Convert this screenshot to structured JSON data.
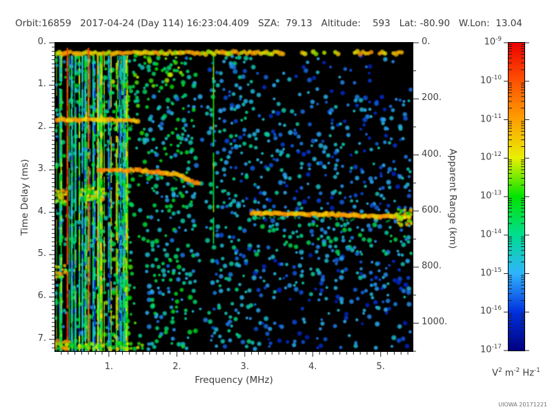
{
  "header": {
    "line": "Orbit:16859   2017-04-24 (Day 114) 16:23:04.409   SZA:  79.13   Altitude:    593   Lat: -80.90   W.Lon:  13.04",
    "fields": {
      "orbit": "16859",
      "date": "2017-04-24",
      "day_of_year": "114",
      "time": "16:23:04.409",
      "sza": "79.13",
      "altitude": "593",
      "lat": "-80.90",
      "w_lon": "13.04"
    }
  },
  "stamp": "UIOWA 20171221",
  "chart_data": {
    "type": "heatmap",
    "title": "",
    "xlabel": "Frequency (MHz)",
    "ylabel": "Time Delay (ms)",
    "y2label": "Apparent Range (km)",
    "axes": {
      "x": {
        "label": "Frequency (MHz)",
        "range": [
          0.21,
          5.47
        ],
        "minor_step": 0.1,
        "majors": [
          {
            "v": 1,
            "t": "1."
          },
          {
            "v": 2,
            "t": "2."
          },
          {
            "v": 3,
            "t": "3."
          },
          {
            "v": 4,
            "t": "4."
          },
          {
            "v": 5,
            "t": "5."
          }
        ]
      },
      "y": {
        "label": "Time Delay (ms)",
        "range": [
          0,
          7.28
        ],
        "minor_step": 0.1,
        "majors": [
          {
            "v": 0,
            "t": "0."
          },
          {
            "v": 1,
            "t": "1."
          },
          {
            "v": 2,
            "t": "2."
          },
          {
            "v": 3,
            "t": "3."
          },
          {
            "v": 4,
            "t": "4."
          },
          {
            "v": 5,
            "t": "5."
          },
          {
            "v": 6,
            "t": "6."
          },
          {
            "v": 7,
            "t": "7."
          }
        ]
      },
      "y2": {
        "label": "Apparent Range (km)",
        "range": [
          0,
          1100
        ],
        "minor_step": 100,
        "majors": [
          {
            "v": 0,
            "t": "0."
          },
          {
            "v": 200,
            "t": "200."
          },
          {
            "v": 400,
            "t": "400."
          },
          {
            "v": 600,
            "t": "600."
          },
          {
            "v": 800,
            "t": "800."
          },
          {
            "v": 1000,
            "t": "1000."
          }
        ]
      }
    },
    "colorbar": {
      "scale": "log",
      "base_text": "10",
      "exponents": [
        "-9",
        "-10",
        "-11",
        "-12",
        "-13",
        "-14",
        "-15",
        "-16",
        "-17"
      ],
      "unit_parts": [
        [
          "V",
          "2"
        ],
        [
          "m",
          "-2"
        ],
        [
          "Hz",
          "-1"
        ]
      ]
    },
    "colormap_stops": [
      [
        0.0,
        "#000080"
      ],
      [
        0.125,
        "#0030dd"
      ],
      [
        0.25,
        "#2fb4ff"
      ],
      [
        0.375,
        "#00dd90"
      ],
      [
        0.5,
        "#00e400"
      ],
      [
        0.625,
        "#e8f000"
      ],
      [
        0.75,
        "#ffa000"
      ],
      [
        0.875,
        "#ff5200"
      ],
      [
        1.0,
        "#ee0000"
      ]
    ],
    "seed": 20171221,
    "noise_regions": [
      {
        "f": [
          3.15,
          5.47
        ],
        "d": [
          4.25,
          5.0
        ],
        "density": 0.5,
        "int": [
          0.18,
          0.45
        ]
      },
      {
        "f": [
          0.9,
          2.1
        ],
        "d": [
          0.3,
          1.05
        ],
        "density": 0.55,
        "int": [
          0.3,
          0.62
        ]
      },
      {
        "f": [
          0.92,
          1.33
        ],
        "d": [
          0.3,
          7.28
        ],
        "density": 0.5,
        "int": [
          0.28,
          0.58
        ]
      },
      {
        "f": [
          1.33,
          1.55
        ],
        "d": [
          0.3,
          1.6
        ],
        "density": 0.5,
        "int": [
          0.28,
          0.55
        ]
      },
      {
        "f": [
          1.33,
          1.55
        ],
        "d": [
          1.6,
          7.28
        ],
        "density": 0.12,
        "int": [
          0.3,
          0.55
        ]
      },
      {
        "f": [
          1.55,
          2.28
        ],
        "d": [
          0.3,
          7.28
        ],
        "density": 0.42,
        "int": [
          0.18,
          0.48
        ]
      },
      {
        "f": [
          2.28,
          2.47
        ],
        "d": [
          0.3,
          7.28
        ],
        "density": 0.08,
        "int": [
          0.15,
          0.35
        ]
      },
      {
        "f": [
          2.47,
          3.15
        ],
        "d": [
          0.3,
          7.28
        ],
        "density": 0.4,
        "int": [
          0.14,
          0.4
        ]
      },
      {
        "f": [
          3.15,
          4.6
        ],
        "d": [
          0.3,
          1.3
        ],
        "density": 0.18,
        "int": [
          0.1,
          0.3
        ]
      },
      {
        "f": [
          4.6,
          5.47
        ],
        "d": [
          0.3,
          1.3
        ],
        "density": 0.14,
        "int": [
          0.08,
          0.28
        ]
      },
      {
        "f": [
          3.15,
          5.47
        ],
        "d": [
          6.1,
          7.28
        ],
        "density": 0.22,
        "int": [
          0.08,
          0.3
        ]
      },
      {
        "f": [
          3.15,
          5.47
        ],
        "d": [
          1.3,
          6.1
        ],
        "density": 0.34,
        "int": [
          0.1,
          0.35
        ]
      },
      {
        "f": [
          0.21,
          0.92
        ],
        "d": [
          0.3,
          7.28
        ],
        "density": 0.3,
        "int": [
          0.2,
          0.5
        ]
      }
    ],
    "stripes": {
      "f_range": [
        0.21,
        1.33
      ],
      "count": 46,
      "int": [
        0.2,
        0.62
      ]
    },
    "features": [
      {
        "name": "transmit-pulse-band",
        "kind": "hband",
        "f": [
          0.21,
          5.47
        ],
        "delay": 0.24,
        "height": 0.17,
        "intensity": 0.68,
        "fragment_after_mhz": 3.5
      },
      {
        "name": "low-freq-bright-line-1",
        "kind": "vline",
        "freq": 0.39,
        "d": [
          0.12,
          7.28
        ],
        "intensity": 0.9,
        "width": 2.5
      },
      {
        "name": "low-freq-bright-line-2",
        "kind": "vline",
        "freq": 0.7,
        "d": [
          0.12,
          7.28
        ],
        "intensity": 0.82,
        "width": 2.5
      },
      {
        "name": "green-stripe",
        "kind": "vline",
        "freq": 0.84,
        "d": [
          0.3,
          7.28
        ],
        "intensity": 0.68,
        "width": 2
      },
      {
        "name": "faint-green-vline",
        "kind": "vline",
        "freq": 2.54,
        "d": [
          0.3,
          4.7
        ],
        "intensity": 0.5,
        "width": 2
      },
      {
        "name": "plasma-harmonic-line",
        "kind": "trace",
        "points": [
          [
            0.21,
            1.82
          ],
          [
            1.0,
            1.82
          ],
          [
            1.45,
            1.84
          ]
        ],
        "height": 0.14,
        "intensity": 0.72
      },
      {
        "name": "ionospheric-echo-trace",
        "kind": "trace",
        "points": [
          [
            0.85,
            3.0
          ],
          [
            1.3,
            3.0
          ],
          [
            1.75,
            3.05
          ],
          [
            2.05,
            3.12
          ],
          [
            2.2,
            3.27
          ],
          [
            2.35,
            3.32
          ]
        ],
        "height": 0.17,
        "intensity": 0.75
      },
      {
        "name": "surface-echo-trace",
        "kind": "trace",
        "points": [
          [
            3.1,
            4.02
          ],
          [
            4.2,
            4.05
          ],
          [
            5.0,
            4.1
          ],
          [
            5.45,
            4.12
          ]
        ],
        "height": 0.18,
        "intensity": 0.72
      },
      {
        "name": "surface-echo-bright-end",
        "kind": "patch",
        "f": [
          5.25,
          5.47
        ],
        "d": [
          3.95,
          4.3
        ],
        "intensity": 0.6
      },
      {
        "name": "green-patch-1",
        "kind": "patch",
        "f": [
          0.21,
          0.38
        ],
        "d": [
          3.5,
          3.75
        ],
        "intensity": 0.68
      },
      {
        "name": "green-patch-2",
        "kind": "patch",
        "f": [
          0.6,
          0.95
        ],
        "d": [
          3.45,
          3.7
        ],
        "intensity": 0.62
      },
      {
        "name": "green-patch-3",
        "kind": "patch",
        "f": [
          0.21,
          0.38
        ],
        "d": [
          5.28,
          5.55
        ],
        "intensity": 0.68
      },
      {
        "name": "bottom-edge-band",
        "kind": "patch",
        "f": [
          0.21,
          1.5
        ],
        "d": [
          7.12,
          7.28
        ],
        "intensity": 0.55
      },
      {
        "name": "bottom-left-corner",
        "kind": "patch",
        "f": [
          0.21,
          0.45
        ],
        "d": [
          7.05,
          7.28
        ],
        "intensity": 0.72
      }
    ]
  }
}
